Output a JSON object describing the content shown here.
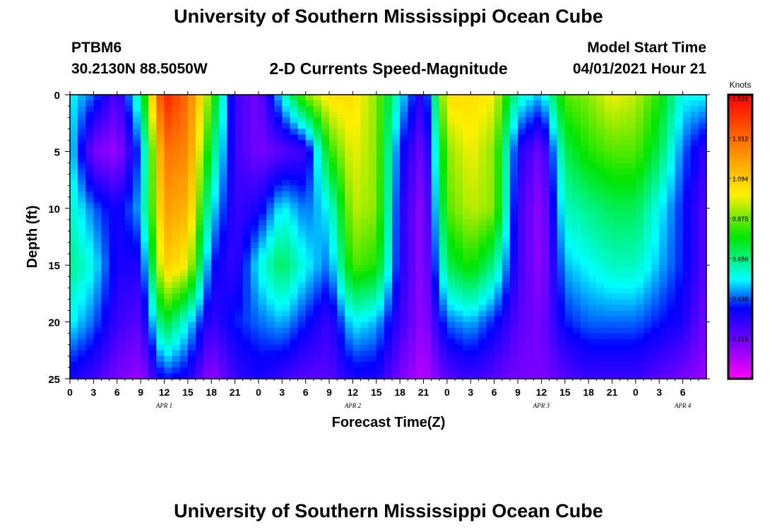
{
  "title": "University of Southern Mississippi Ocean Cube",
  "footer_title": "University of Southern Mississippi Ocean Cube",
  "station": {
    "id": "PTBM6",
    "position": "30.2130N  88.5050W"
  },
  "model": {
    "label": "Model Start Time",
    "start": "04/01/2021 Hour 21"
  },
  "chart_data": {
    "type": "heatmap",
    "title": "2-D Currents Speed-Magnitude",
    "xlabel": "Forecast Time(Z)",
    "ylabel": "Depth (ft)",
    "colorbar_label": "Knots",
    "xlim": [
      0,
      81
    ],
    "ylim": [
      0,
      25
    ],
    "y_inverted": true,
    "grid": false,
    "x_tick_labels": [
      "0",
      "3",
      "6",
      "9",
      "12",
      "15",
      "18",
      "21",
      "0",
      "3",
      "6",
      "9",
      "12",
      "15",
      "18",
      "21",
      "0",
      "3",
      "6",
      "9",
      "12",
      "15",
      "18",
      "21",
      "0",
      "3",
      "6"
    ],
    "date_labels": [
      {
        "text": "APR  1",
        "hour": 12
      },
      {
        "text": "APR  2",
        "hour": 36
      },
      {
        "text": "APR  3",
        "hour": 60
      },
      {
        "text": "APR  4",
        "hour": 78
      }
    ],
    "y_ticks": [
      0,
      5,
      10,
      15,
      20,
      25
    ],
    "colorbar_ticks": [
      0.219,
      0.438,
      0.656,
      0.875,
      1.094,
      1.312,
      1.531
    ],
    "colorbar_range": [
      0,
      1.55
    ],
    "hours": [
      0,
      3,
      6,
      9,
      12,
      15,
      18,
      21,
      24,
      27,
      30,
      33,
      36,
      39,
      42,
      45,
      48,
      51,
      54,
      57,
      60,
      63,
      66,
      69,
      72,
      75,
      78,
      81
    ],
    "depths": [
      0,
      5,
      10,
      15,
      20,
      25
    ],
    "values": [
      [
        0.55,
        0.45,
        0.25,
        0.65,
        1.5,
        1.3,
        0.85,
        0.3,
        0.2,
        0.55,
        0.9,
        1.05,
        1.05,
        0.9,
        0.55,
        0.3,
        1.05,
        1.05,
        1.0,
        0.6,
        0.5,
        0.85,
        0.9,
        1.0,
        0.95,
        0.8,
        0.55,
        0.55
      ],
      [
        0.55,
        0.2,
        0.15,
        0.45,
        1.3,
        1.25,
        0.7,
        0.3,
        0.2,
        0.25,
        0.3,
        0.8,
        1.0,
        0.9,
        0.4,
        0.2,
        0.9,
        1.0,
        0.9,
        0.35,
        0.2,
        0.7,
        0.8,
        0.85,
        0.85,
        0.7,
        0.45,
        0.3
      ],
      [
        0.6,
        0.45,
        0.35,
        0.5,
        1.2,
        1.15,
        0.55,
        0.3,
        0.35,
        0.55,
        0.45,
        0.55,
        0.95,
        0.9,
        0.35,
        0.15,
        0.85,
        0.95,
        0.9,
        0.3,
        0.15,
        0.6,
        0.65,
        0.7,
        0.7,
        0.55,
        0.4,
        0.25
      ],
      [
        0.65,
        0.55,
        0.35,
        0.35,
        1.1,
        1.0,
        0.4,
        0.3,
        0.55,
        0.7,
        0.55,
        0.45,
        0.85,
        0.8,
        0.35,
        0.15,
        0.7,
        0.8,
        0.65,
        0.3,
        0.15,
        0.5,
        0.55,
        0.6,
        0.6,
        0.5,
        0.4,
        0.25
      ],
      [
        0.55,
        0.45,
        0.3,
        0.25,
        0.75,
        0.55,
        0.3,
        0.4,
        0.45,
        0.5,
        0.4,
        0.3,
        0.55,
        0.5,
        0.3,
        0.15,
        0.45,
        0.5,
        0.4,
        0.25,
        0.2,
        0.4,
        0.45,
        0.45,
        0.45,
        0.4,
        0.35,
        0.2
      ],
      [
        0.35,
        0.3,
        0.2,
        0.15,
        0.4,
        0.35,
        0.15,
        0.3,
        0.35,
        0.3,
        0.25,
        0.25,
        0.35,
        0.35,
        0.2,
        0.1,
        0.25,
        0.3,
        0.25,
        0.2,
        0.2,
        0.25,
        0.3,
        0.3,
        0.3,
        0.25,
        0.2,
        0.15
      ]
    ]
  }
}
